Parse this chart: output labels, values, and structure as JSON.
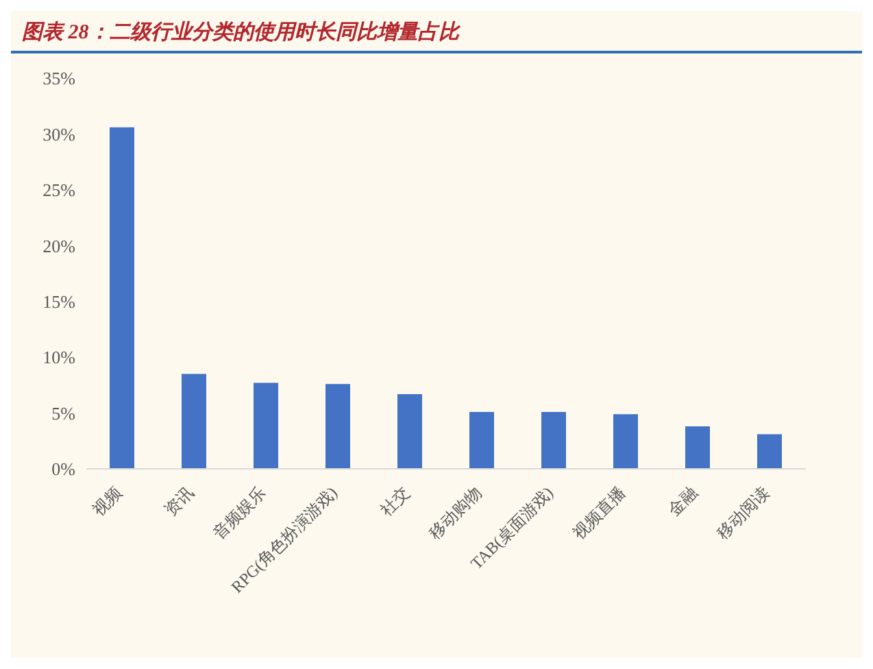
{
  "chart_data": {
    "type": "bar",
    "title": "图表 28：二级行业分类的使用时长同比增量占比",
    "categories": [
      "视频",
      "资讯",
      "音频娱乐",
      "RPG(角色扮演游戏)",
      "社交",
      "移动购物",
      "TAB(桌面游戏)",
      "视频直播",
      "金融",
      "移动阅读"
    ],
    "values": [
      30.6,
      8.5,
      7.7,
      7.6,
      6.7,
      5.1,
      5.1,
      4.9,
      3.8,
      3.1
    ],
    "color": "#4472c4",
    "ylim": [
      0,
      35
    ],
    "yticks": [
      {
        "value": 0,
        "label": "0%"
      },
      {
        "value": 5,
        "label": "5%"
      },
      {
        "value": 10,
        "label": "10%"
      },
      {
        "value": 15,
        "label": "15%"
      },
      {
        "value": 20,
        "label": "20%"
      },
      {
        "value": 25,
        "label": "25%"
      },
      {
        "value": 30,
        "label": "30%"
      },
      {
        "value": 35,
        "label": "35%"
      }
    ],
    "grid": false
  }
}
